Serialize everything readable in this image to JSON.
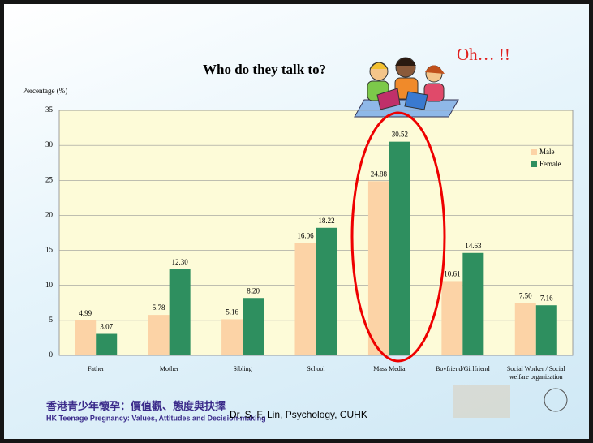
{
  "chart_data": {
    "type": "bar",
    "title": "Who do they talk to?",
    "annotation": "Oh… !!",
    "y_label": "Percentage (%)",
    "categories": [
      "Father",
      "Mother",
      "Sibling",
      "School",
      "Mass Media",
      "Boyfriend/Girlfriend",
      "Social Worker / Social welfare organization"
    ],
    "series": [
      {
        "name": "Male",
        "color": "#fcd3a6",
        "values": [
          4.99,
          5.78,
          5.16,
          16.06,
          24.88,
          10.61,
          7.5
        ],
        "value_labels": [
          "4.99",
          "5.78",
          "5.16",
          "16.06",
          "24.88",
          "10.61",
          "7.50"
        ]
      },
      {
        "name": "Female",
        "color": "#2e8f5f",
        "values": [
          3.07,
          12.3,
          8.2,
          18.22,
          30.52,
          14.63,
          7.16
        ],
        "value_labels": [
          "3.07",
          "12.30",
          "8.20",
          "18.22",
          "30.52",
          "14.63",
          "7.16"
        ]
      }
    ],
    "ylim": [
      0,
      35
    ],
    "yticks": [
      0,
      5,
      10,
      15,
      20,
      25,
      30,
      35
    ],
    "grid": true,
    "legend": "right"
  },
  "footer": {
    "credit": "Dr. S. F. Lin, Psychology, CUHK",
    "project_zh": "香港青少年懷孕：價值觀、態度與抉擇",
    "project_en": "HK Teenage Pregnancy: Values, Attitudes and Decision-making"
  }
}
